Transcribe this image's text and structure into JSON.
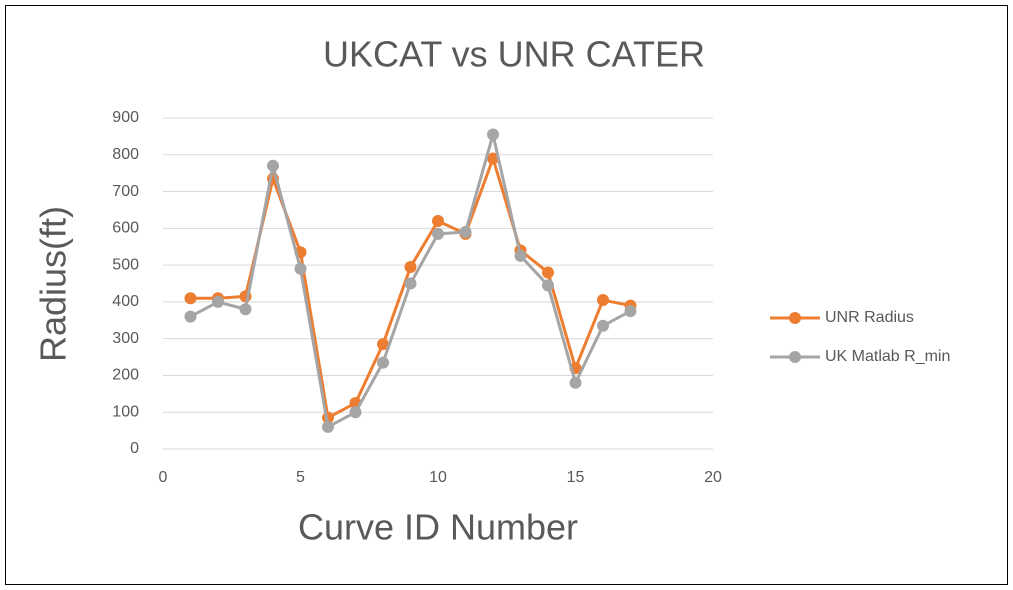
{
  "chart_data": {
    "type": "line",
    "title": "UKCAT  vs UNR CATER",
    "xlabel": "Curve ID Number",
    "ylabel": "Radius(ft)",
    "x": [
      1,
      2,
      3,
      4,
      5,
      6,
      7,
      8,
      9,
      10,
      11,
      12,
      13,
      14,
      15,
      16,
      17
    ],
    "series": [
      {
        "name": "UNR Radius",
        "color": "#ed7d31",
        "values": [
          410,
          410,
          415,
          735,
          535,
          85,
          125,
          285,
          495,
          620,
          585,
          790,
          540,
          480,
          220,
          405,
          390
        ]
      },
      {
        "name": "UK Matlab R_min",
        "color": "#a5a5a5",
        "values": [
          360,
          400,
          380,
          770,
          490,
          60,
          100,
          235,
          450,
          585,
          590,
          855,
          525,
          445,
          180,
          335,
          375
        ]
      }
    ],
    "xlim": [
      0,
      20
    ],
    "xticks": [
      0,
      5,
      10,
      15,
      20
    ],
    "ylim": [
      0,
      900
    ],
    "yticks": [
      0,
      100,
      200,
      300,
      400,
      500,
      600,
      700,
      800,
      900
    ],
    "grid": true,
    "legend": "right"
  }
}
